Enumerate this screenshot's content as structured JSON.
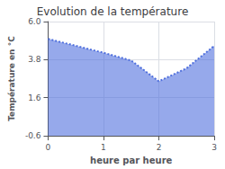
{
  "chart_data": {
    "type": "area",
    "title": "Evolution de la température",
    "xlabel": "heure par heure",
    "ylabel": "Température en °C",
    "x": [
      0,
      0.5,
      1,
      1.5,
      2,
      2.5,
      3
    ],
    "values": [
      5.0,
      4.6,
      4.2,
      3.75,
      2.55,
      3.3,
      4.6
    ],
    "xlim": [
      0,
      3
    ],
    "xticks": [
      0,
      1,
      2,
      3
    ],
    "ylim": [
      -0.6,
      6.0
    ],
    "yticks": [
      -0.6,
      1.6,
      3.8,
      {
        "value": 6.0,
        "label": "6.0"
      }
    ],
    "line_style": "dotted",
    "grid": true
  }
}
